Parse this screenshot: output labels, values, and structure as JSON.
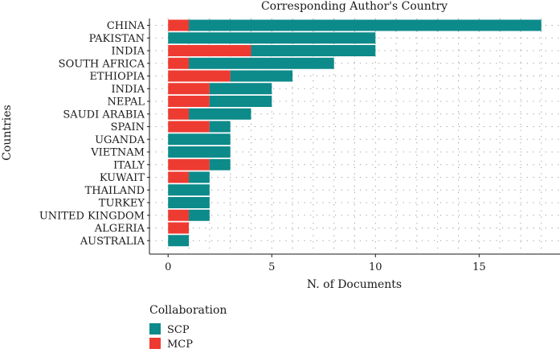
{
  "chart_data": {
    "type": "bar",
    "orientation": "horizontal",
    "stacked": true,
    "title": "Corresponding Author's Country",
    "xlabel": "N. of Documents",
    "ylabel": "Countries",
    "xlim": [
      -0.9,
      18.9
    ],
    "xticks": [
      0,
      5,
      10,
      15
    ],
    "grid": "dotted",
    "categories": [
      "CHINA",
      "PAKISTAN",
      "INDIA",
      "SOUTH AFRICA",
      "ETHIOPIA",
      "INDIA",
      "NEPAL",
      "SAUDI ARABIA",
      "SPAIN",
      "UGANDA",
      "VIETNAM",
      "ITALY",
      "KUWAIT",
      "THAILAND",
      "TURKEY",
      "UNITED KINGDOM",
      "ALGERIA",
      "AUSTRALIA"
    ],
    "series": [
      {
        "name": "SCP",
        "color": "#0d8a8a",
        "values": [
          17,
          10,
          6,
          7,
          3,
          3,
          3,
          3,
          1,
          3,
          3,
          1,
          1,
          2,
          2,
          1,
          0,
          1
        ]
      },
      {
        "name": "MCP",
        "color": "#ee3b32",
        "values": [
          1,
          0,
          4,
          1,
          3,
          2,
          2,
          1,
          2,
          0,
          0,
          2,
          1,
          0,
          0,
          1,
          1,
          0
        ]
      }
    ],
    "legend": {
      "title": "Collaboration",
      "position": "bottom-left",
      "items": [
        "SCP",
        "MCP"
      ]
    }
  }
}
